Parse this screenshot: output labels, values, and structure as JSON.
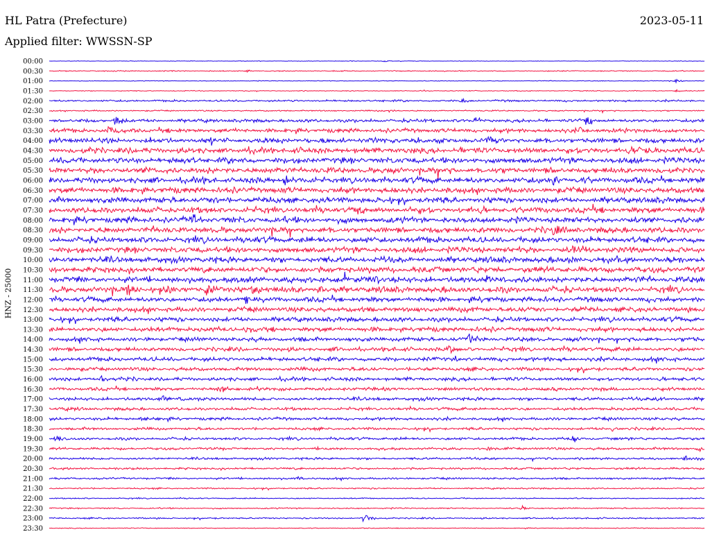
{
  "header": {
    "title": "HL Patra (Prefecture)",
    "date": "2023-05-11",
    "filter": "Applied filter: WWSSN-SP"
  },
  "axis": {
    "vertical_label": "HNZ - 25000"
  },
  "colors": {
    "trace_a": "#1a00e6",
    "trace_b": "#f2113f",
    "background": "#ffffff"
  },
  "chart_data": {
    "type": "line",
    "title": "HL Patra (Prefecture)",
    "subtitle": "Applied filter: WWSSN-SP",
    "ylabel": "HNZ - 25000",
    "row_labels": [
      "00:00",
      "00:30",
      "01:00",
      "01:30",
      "02:00",
      "02:30",
      "03:00",
      "03:30",
      "04:00",
      "04:30",
      "05:00",
      "05:30",
      "06:00",
      "06:30",
      "07:00",
      "07:30",
      "08:00",
      "08:30",
      "09:00",
      "09:30",
      "10:00",
      "10:30",
      "11:00",
      "11:30",
      "12:00",
      "12:30",
      "13:00",
      "13:30",
      "14:00",
      "14:30",
      "15:00",
      "15:30",
      "16:00",
      "16:30",
      "17:00",
      "17:30",
      "18:00",
      "18:30",
      "19:00",
      "19:30",
      "20:00",
      "20:30",
      "21:00",
      "21:30",
      "22:00",
      "22:30",
      "23:00",
      "23:30"
    ],
    "series_colors": [
      "#1a00e6",
      "#f2113f"
    ],
    "grid": false,
    "noise_level": [
      0.3,
      0.6,
      0.4,
      0.5,
      1.2,
      0.8,
      2.0,
      2.5,
      3.0,
      3.5,
      3.5,
      3.5,
      3.5,
      3.5,
      3.5,
      3.5,
      3.5,
      3.5,
      3.5,
      3.5,
      3.5,
      3.5,
      3.5,
      3.5,
      3.0,
      3.0,
      2.8,
      2.8,
      2.5,
      2.5,
      2.5,
      2.2,
      2.2,
      2.0,
      2.0,
      1.8,
      1.8,
      1.6,
      1.6,
      1.5,
      1.4,
      1.3,
      1.2,
      0.9,
      0.7,
      0.8,
      0.9,
      0.5
    ],
    "events": [
      {
        "row": 0,
        "t": 0.51,
        "amp": 1.5
      },
      {
        "row": 1,
        "t": 0.3,
        "amp": 2
      },
      {
        "row": 2,
        "t": 0.955,
        "amp": 3
      },
      {
        "row": 3,
        "t": 0.955,
        "amp": 2
      },
      {
        "row": 4,
        "t": 0.63,
        "amp": 3
      },
      {
        "row": 5,
        "t": 0.52,
        "amp": 3
      },
      {
        "row": 6,
        "t": 0.1,
        "amp": 9
      },
      {
        "row": 6,
        "t": 0.82,
        "amp": 9
      },
      {
        "row": 6,
        "t": 0.65,
        "amp": 5
      },
      {
        "row": 7,
        "t": 0.09,
        "amp": 6
      },
      {
        "row": 7,
        "t": 0.81,
        "amp": 7
      },
      {
        "row": 8,
        "t": 0.67,
        "amp": 7
      },
      {
        "row": 9,
        "t": 0.9,
        "amp": 5
      },
      {
        "row": 12,
        "t": 0.36,
        "amp": 9
      },
      {
        "row": 12,
        "t": 0.77,
        "amp": 7
      },
      {
        "row": 15,
        "t": 0.47,
        "amp": 6
      },
      {
        "row": 16,
        "t": 0.22,
        "amp": 7
      },
      {
        "row": 17,
        "t": 0.77,
        "amp": 6
      },
      {
        "row": 19,
        "t": 0.8,
        "amp": 7
      },
      {
        "row": 20,
        "t": 0.54,
        "amp": 7
      },
      {
        "row": 20,
        "t": 0.79,
        "amp": 6
      },
      {
        "row": 22,
        "t": 0.5,
        "amp": 8
      },
      {
        "row": 22,
        "t": 0.67,
        "amp": 6
      },
      {
        "row": 23,
        "t": 0.12,
        "amp": 10
      },
      {
        "row": 23,
        "t": 0.18,
        "amp": 9
      },
      {
        "row": 23,
        "t": 0.24,
        "amp": 10
      },
      {
        "row": 23,
        "t": 0.31,
        "amp": 9
      },
      {
        "row": 23,
        "t": 0.41,
        "amp": 8
      },
      {
        "row": 24,
        "t": 0.3,
        "amp": 6
      },
      {
        "row": 27,
        "t": 0.3,
        "amp": 6
      },
      {
        "row": 28,
        "t": 0.64,
        "amp": 8
      },
      {
        "row": 29,
        "t": 0.61,
        "amp": 7
      },
      {
        "row": 30,
        "t": 0.62,
        "amp": 5
      },
      {
        "row": 32,
        "t": 0.08,
        "amp": 5
      },
      {
        "row": 33,
        "t": 0.26,
        "amp": 5
      },
      {
        "row": 34,
        "t": 0.17,
        "amp": 6
      },
      {
        "row": 34,
        "t": 0.93,
        "amp": 5
      },
      {
        "row": 36,
        "t": 0.14,
        "amp": 5
      },
      {
        "row": 37,
        "t": 0.86,
        "amp": 4
      },
      {
        "row": 38,
        "t": 0.01,
        "amp": 5
      },
      {
        "row": 38,
        "t": 0.8,
        "amp": 5
      },
      {
        "row": 39,
        "t": 0.99,
        "amp": 7
      },
      {
        "row": 39,
        "t": 0.67,
        "amp": 4
      },
      {
        "row": 40,
        "t": 0.97,
        "amp": 6
      },
      {
        "row": 42,
        "t": 0.38,
        "amp": 4
      },
      {
        "row": 45,
        "t": 0.72,
        "amp": 5
      },
      {
        "row": 46,
        "t": 0.48,
        "amp": 9
      }
    ]
  }
}
